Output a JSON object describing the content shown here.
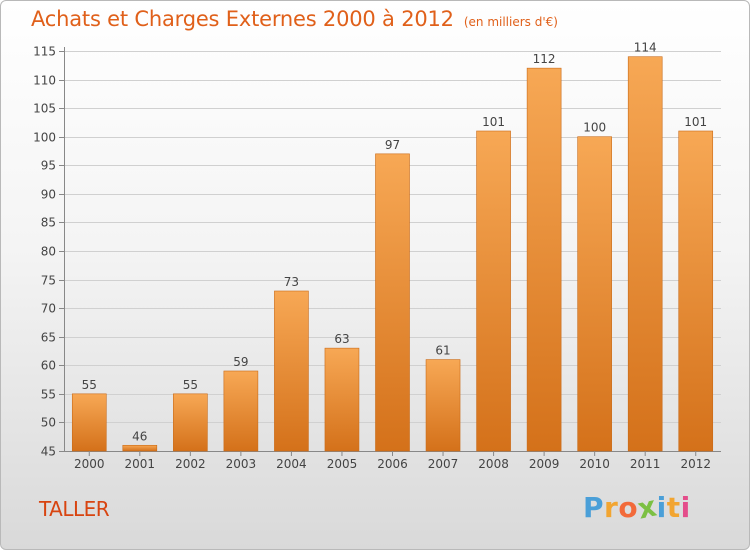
{
  "title": "Achats et Charges Externes 2000 à 2012",
  "subtitle": "(en milliers d'€)",
  "commune": "TALLER",
  "logo": {
    "text": "Proxiti",
    "letters": [
      "P",
      "r",
      "o",
      "x",
      "i",
      "t",
      "i"
    ],
    "colors": [
      "#4a9fd8",
      "#f2a531",
      "#f26a3a",
      "#7cc043",
      "#4a9fd8",
      "#f2a531",
      "#e44d8b"
    ]
  },
  "chart_data": {
    "type": "bar",
    "categories": [
      "2000",
      "2001",
      "2002",
      "2003",
      "2004",
      "2005",
      "2006",
      "2007",
      "2008",
      "2009",
      "2010",
      "2011",
      "2012"
    ],
    "values": [
      55,
      46,
      55,
      59,
      73,
      63,
      97,
      61,
      101,
      112,
      100,
      114,
      101
    ],
    "value_labels": [
      "55",
      "46",
      "55",
      "59",
      "73",
      "63",
      "97",
      "61",
      "101",
      "112",
      "100",
      "114",
      "101"
    ],
    "y_ticks": [
      45,
      50,
      55,
      60,
      65,
      70,
      75,
      80,
      85,
      90,
      95,
      100,
      105,
      110,
      115
    ],
    "ylim": [
      45,
      115
    ],
    "grid": true,
    "bar_color": "#f0882e",
    "title_color": "#e0601a"
  }
}
